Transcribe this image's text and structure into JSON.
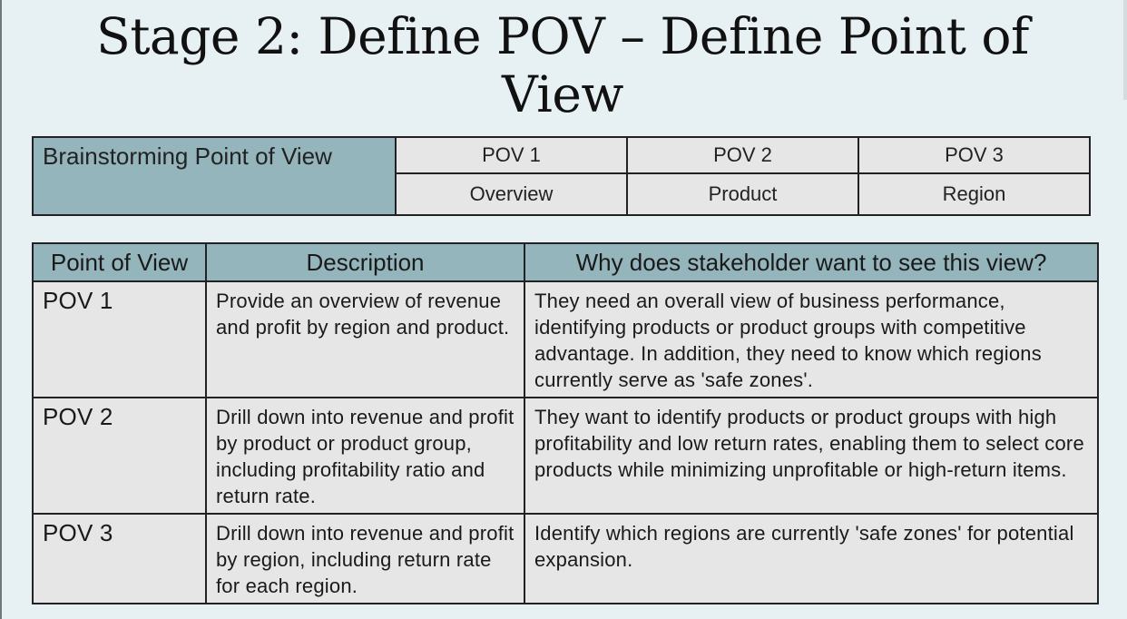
{
  "slide": {
    "title": "Stage 2: Define POV – Define Point of View"
  },
  "brainstorm": {
    "label": "Brainstorming Point of View",
    "columns": [
      {
        "name": "POV 1",
        "topic": "Overview"
      },
      {
        "name": "POV 2",
        "topic": "Product"
      },
      {
        "name": "POV 3",
        "topic": "Region"
      }
    ]
  },
  "pov_table": {
    "headers": [
      "Point of View",
      "Description",
      "Why does stakeholder want to see this view?"
    ],
    "rows": [
      {
        "pov": "POV 1",
        "description": "Provide an overview of revenue and profit by region and product.",
        "why": "They need an overall view of business performance, identifying products or product groups with competitive advantage. In addition, they need to know which regions currently serve as 'safe zones'."
      },
      {
        "pov": "POV 2",
        "description": "Drill down into revenue and profit by product or product group, including profitability ratio and return rate.",
        "why": "They want to identify products or product groups with high profitability and low return rates, enabling them to select core products while minimizing unprofitable or high-return items."
      },
      {
        "pov": "POV 3",
        "description": "Drill down into revenue and profit by region, including return rate for each region.",
        "why": "Identify which regions are currently 'safe zones' for potential expansion."
      }
    ]
  }
}
